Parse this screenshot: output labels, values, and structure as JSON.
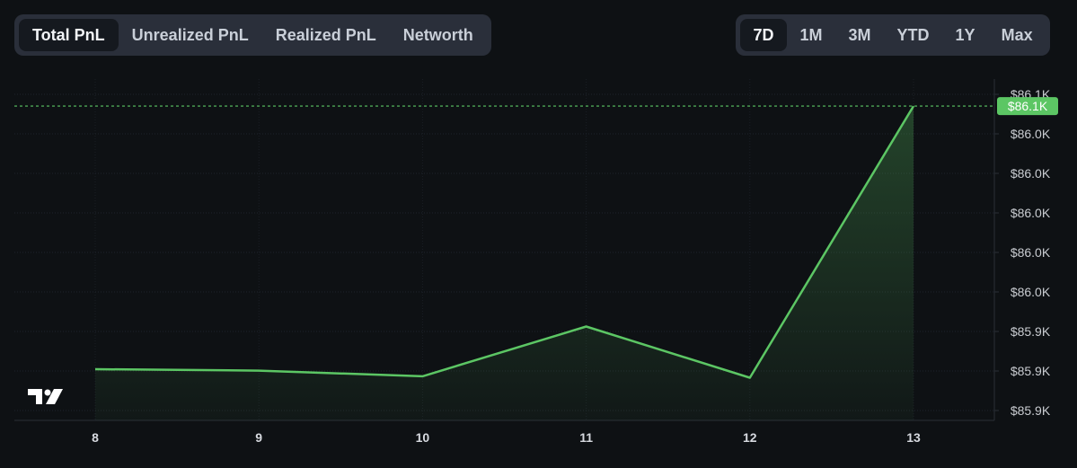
{
  "tabs": {
    "metrics": [
      "Total PnL",
      "Unrealized PnL",
      "Realized PnL",
      "Networth"
    ],
    "active_metric": "Total PnL",
    "ranges": [
      "7D",
      "1M",
      "3M",
      "YTD",
      "1Y",
      "Max"
    ],
    "active_range": "7D"
  },
  "colors": {
    "line": "#5cc664",
    "badge": "#5cc664",
    "background": "#0e1114"
  },
  "chart_data": {
    "type": "area",
    "x": [
      "8",
      "9",
      "10",
      "11",
      "12",
      "13"
    ],
    "series": [
      {
        "values": [
          85936,
          85935,
          85931,
          85966,
          85930,
          86121
        ]
      }
    ],
    "y_tick_labels": [
      "$86.1K",
      "$86.0K",
      "$86.0K",
      "$86.0K",
      "$86.0K",
      "$86.0K",
      "$85.9K",
      "$85.9K",
      "$85.9K"
    ],
    "ylim": [
      85900,
      86140
    ],
    "last_value_label": "$86.1K",
    "grid": true,
    "logo": "tradingview-logo"
  }
}
